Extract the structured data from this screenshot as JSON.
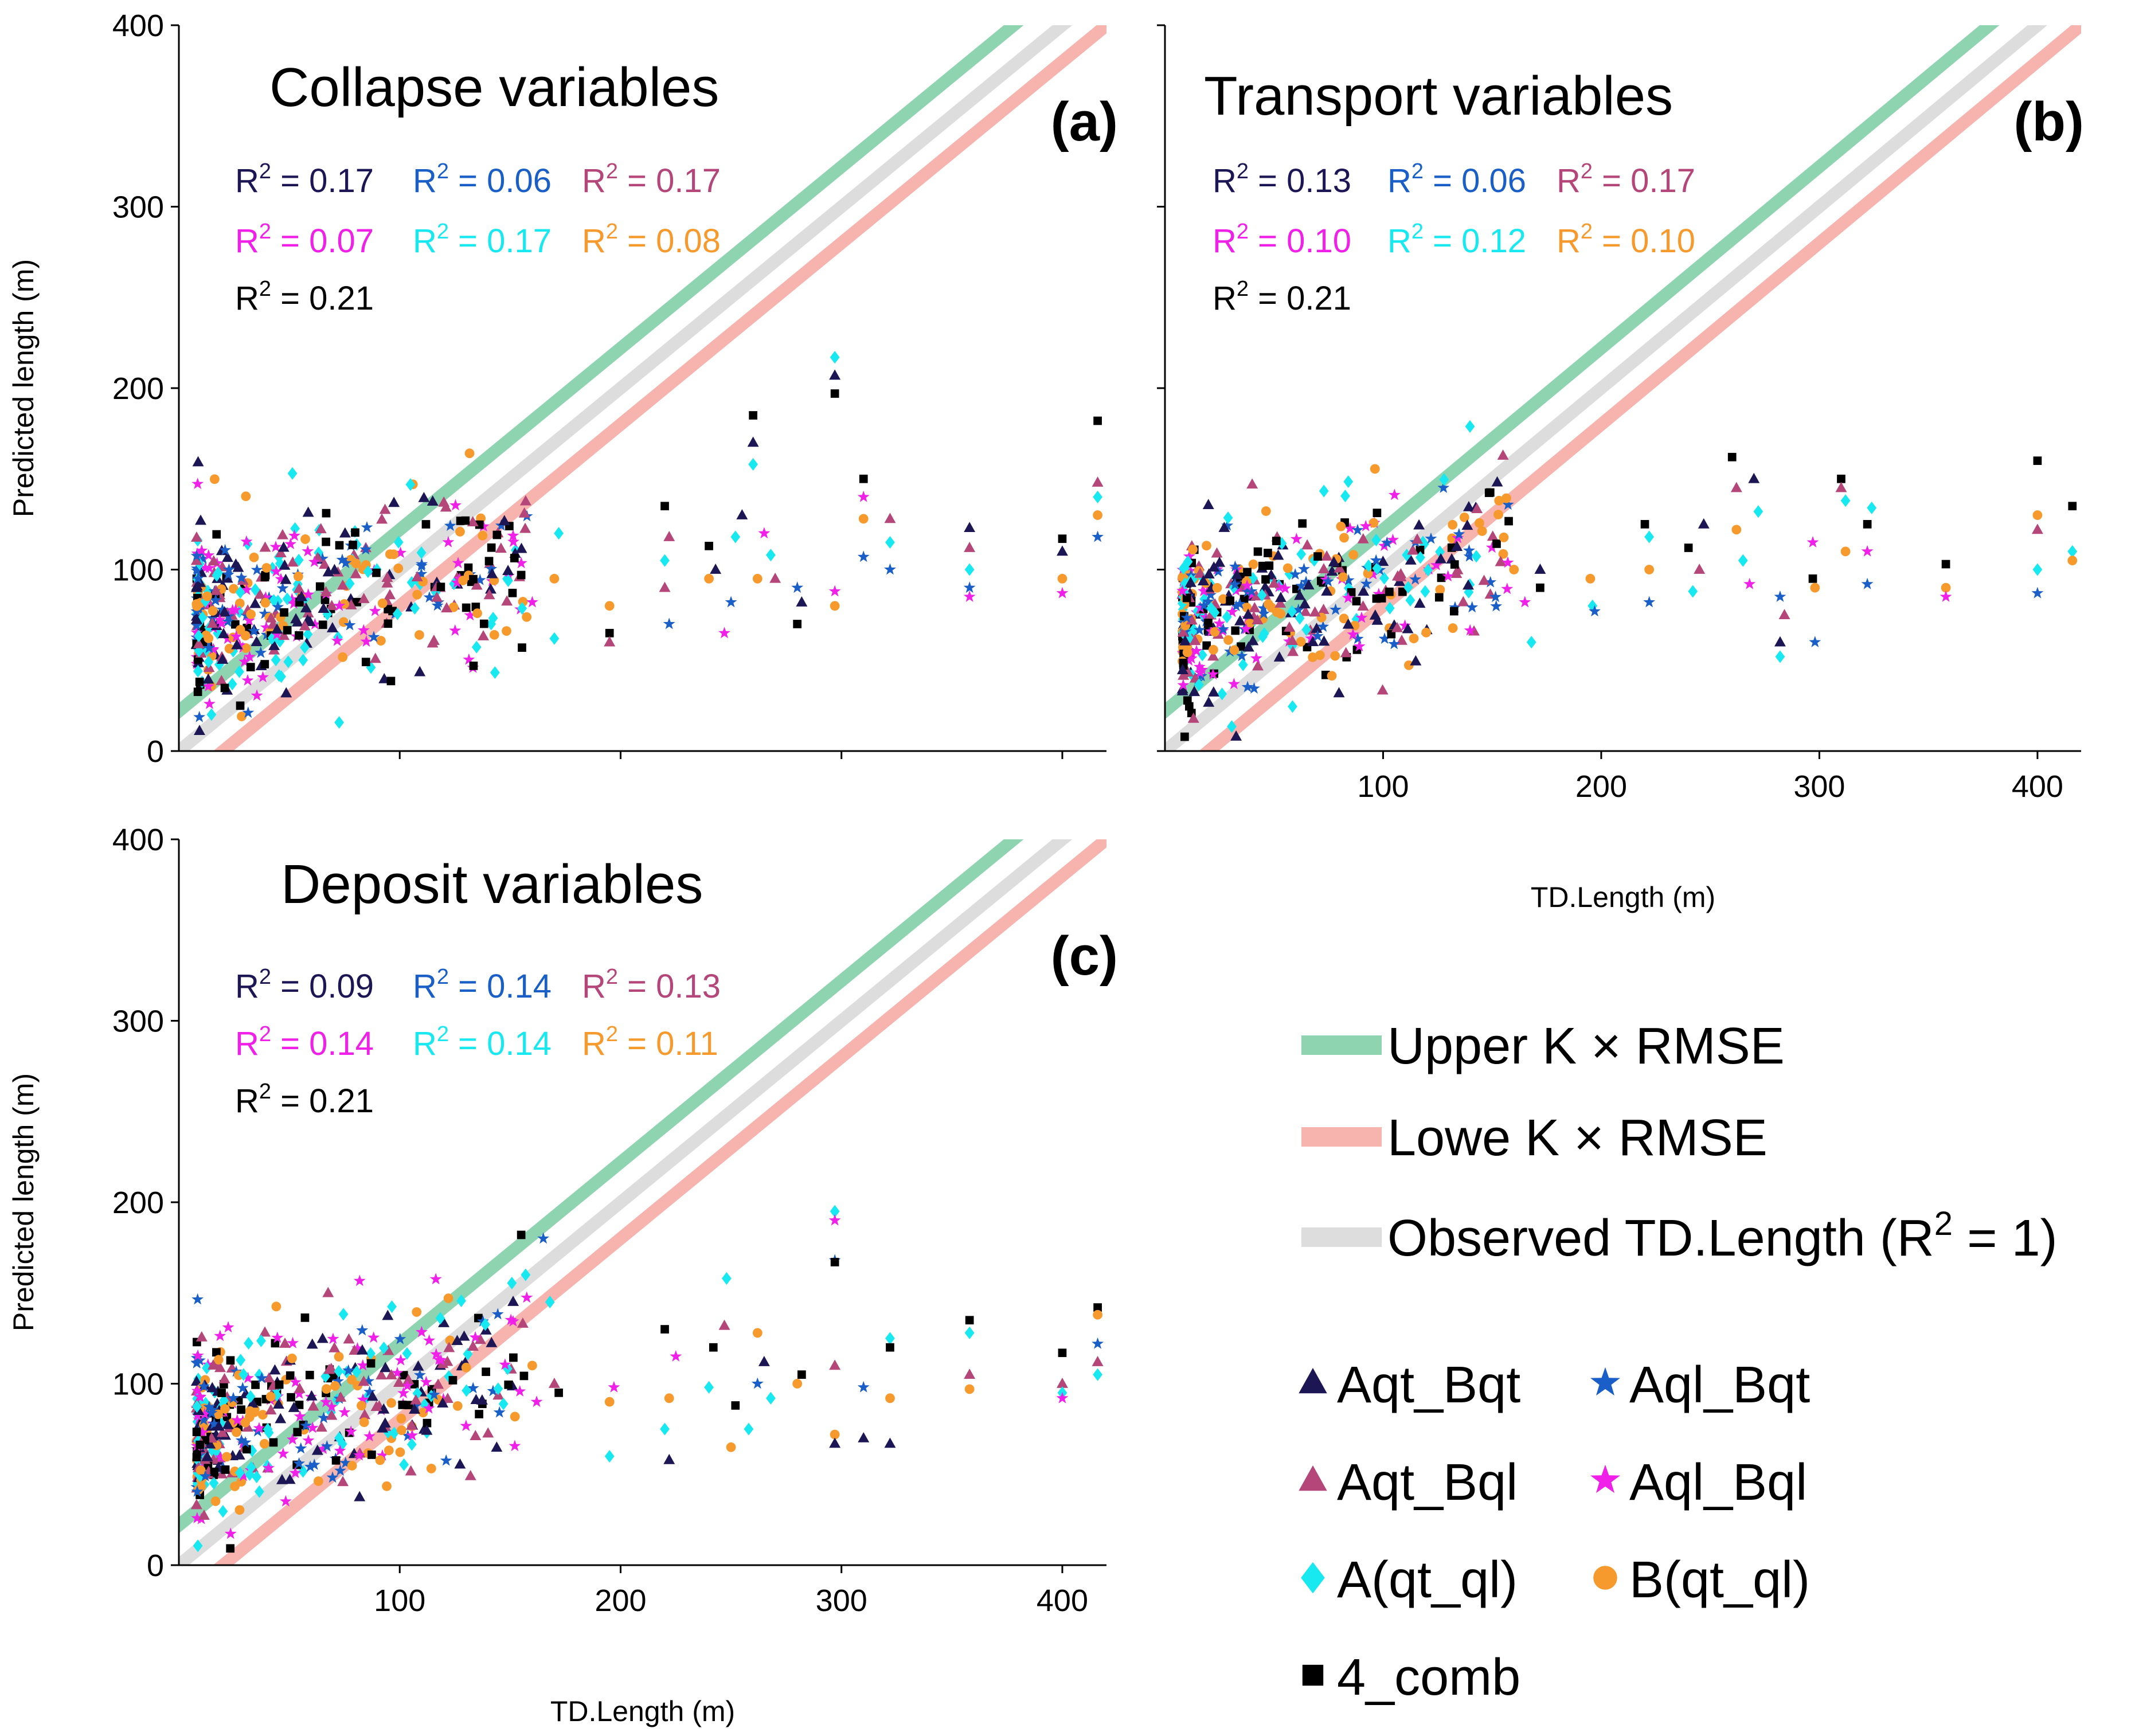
{
  "legend": {
    "lines": [
      {
        "name": "upper",
        "label": "Upper K × RMSE",
        "color": "#8fd4b0"
      },
      {
        "name": "lower",
        "label": "Lowe K × RMSE",
        "color": "#f7b3ad"
      },
      {
        "name": "observed",
        "label": "Observed TD.Length (R",
        "sup": "2",
        "suffix": " = 1)",
        "color": "#dddddd"
      }
    ],
    "markers": [
      {
        "key": "Aqt_Bqt",
        "label": "Aqt_Bqt",
        "color": "#1d1655",
        "shape": "triangle"
      },
      {
        "key": "Aql_Bqt",
        "label": "Aql_Bqt",
        "color": "#1a5fc7",
        "shape": "star"
      },
      {
        "key": "Aqt_Bql",
        "label": "Aqt_Bql",
        "color": "#b4467a",
        "shape": "triangle"
      },
      {
        "key": "Aql_Bql",
        "label": "Aql_Bql",
        "color": "#f020e8",
        "shape": "star"
      },
      {
        "key": "A_qt_ql",
        "label": "A(qt_ql)",
        "color": "#18e8f0",
        "shape": "diamond"
      },
      {
        "key": "B_qt_ql",
        "label": "B(qt_ql)",
        "color": "#f79a2e",
        "shape": "circle"
      },
      {
        "key": "comb4",
        "label": "4_comb",
        "color": "#000000",
        "shape": "square"
      }
    ]
  },
  "chart_data": [
    {
      "type": "scatter",
      "id": "a",
      "title": "Collapse variables",
      "tag": "(a)",
      "xlabel": "TD.Length (m)",
      "ylabel": "Predicted length (m)",
      "xlim": [
        0,
        420
      ],
      "ylim": [
        0,
        400
      ],
      "xticks": [
        "100",
        "200",
        "300",
        "400"
      ],
      "yticks": [
        "0",
        "100",
        "200",
        "300",
        "400"
      ],
      "show_xlabel": false,
      "show_xticklabels": false,
      "r2": [
        {
          "series": "Aqt_Bqt",
          "prefix": "R",
          "sup": "2",
          "text": " = 0.17"
        },
        {
          "series": "Aql_Bqt",
          "prefix": "R",
          "sup": "2",
          "text": " = 0.06"
        },
        {
          "series": "Aqt_Bql",
          "prefix": "R",
          "sup": "2",
          "text": " = 0.17"
        },
        {
          "series": "Aql_Bql",
          "prefix": "R",
          "sup": "2",
          "text": " = 0.07"
        },
        {
          "series": "A_qt_ql",
          "prefix": "R",
          "sup": "2",
          "text": " = 0.17"
        },
        {
          "series": "B_qt_ql",
          "prefix": "R",
          "sup": "2",
          "text": " = 0.08"
        },
        {
          "series": "comb4",
          "prefix": "R",
          "sup": "2",
          "text": " = 0.21"
        }
      ],
      "band": {
        "upper_offset": 22,
        "lower_offset": -20
      },
      "sparse_points": [
        [
          155,
          97,
          "comb4"
        ],
        [
          160,
          82,
          "Aql_Bql"
        ],
        [
          170,
          95,
          "B_qt_ql"
        ],
        [
          170,
          62,
          "A_qt_ql"
        ],
        [
          172,
          120,
          "A_qt_ql"
        ],
        [
          195,
          65,
          "comb4"
        ],
        [
          195,
          80,
          "B_qt_ql"
        ],
        [
          195,
          60,
          "Aqt_Bql"
        ],
        [
          220,
          135,
          "comb4"
        ],
        [
          220,
          105,
          "A_qt_ql"
        ],
        [
          222,
          70,
          "Aql_Bqt"
        ],
        [
          220,
          90,
          "Aqt_Bql"
        ],
        [
          222,
          118,
          "Aqt_Bql"
        ],
        [
          240,
          113,
          "comb4"
        ],
        [
          240,
          95,
          "B_qt_ql"
        ],
        [
          243,
          100,
          "Aqt_Bqt"
        ],
        [
          247,
          65,
          "Aql_Bql"
        ],
        [
          250,
          82,
          "Aql_Bqt"
        ],
        [
          252,
          118,
          "A_qt_ql"
        ],
        [
          255,
          130,
          "Aqt_Bqt"
        ],
        [
          260,
          185,
          "comb4"
        ],
        [
          260,
          170,
          "Aqt_Bqt"
        ],
        [
          260,
          158,
          "A_qt_ql"
        ],
        [
          262,
          95,
          "B_qt_ql"
        ],
        [
          265,
          120,
          "Aql_Bql"
        ],
        [
          268,
          108,
          "A_qt_ql"
        ],
        [
          270,
          95,
          "Aqt_Bql"
        ],
        [
          280,
          70,
          "comb4"
        ],
        [
          280,
          90,
          "Aql_Bqt"
        ],
        [
          282,
          82,
          "Aqt_Bqt"
        ],
        [
          297,
          217,
          "A_qt_ql"
        ],
        [
          297,
          207,
          "Aqt_Bqt"
        ],
        [
          297,
          197,
          "comb4"
        ],
        [
          297,
          88,
          "Aql_Bql"
        ],
        [
          297,
          80,
          "B_qt_ql"
        ],
        [
          310,
          150,
          "comb4"
        ],
        [
          310,
          140,
          "Aql_Bql"
        ],
        [
          310,
          128,
          "B_qt_ql"
        ],
        [
          310,
          107,
          "Aql_Bqt"
        ],
        [
          322,
          128,
          "Aqt_Bql"
        ],
        [
          322,
          115,
          "A_qt_ql"
        ],
        [
          322,
          100,
          "Aql_Bqt"
        ],
        [
          358,
          123,
          "Aqt_Bqt"
        ],
        [
          358,
          112,
          "Aqt_Bql"
        ],
        [
          358,
          100,
          "A_qt_ql"
        ],
        [
          358,
          90,
          "Aql_Bqt"
        ],
        [
          358,
          85,
          "Aql_Bql"
        ],
        [
          400,
          117,
          "comb4"
        ],
        [
          400,
          110,
          "Aqt_Bqt"
        ],
        [
          400,
          95,
          "B_qt_ql"
        ],
        [
          400,
          87,
          "Aql_Bql"
        ],
        [
          416,
          182,
          "comb4"
        ],
        [
          416,
          148,
          "Aqt_Bql"
        ],
        [
          416,
          140,
          "A_qt_ql"
        ],
        [
          416,
          130,
          "B_qt_ql"
        ],
        [
          416,
          118,
          "Aql_Bqt"
        ]
      ]
    },
    {
      "type": "scatter",
      "id": "b",
      "title": "Transport variables",
      "tag": "(b)",
      "xlabel": "TD.Length (m)",
      "ylabel": "Predicted length (m)",
      "xlim": [
        0,
        420
      ],
      "ylim": [
        0,
        400
      ],
      "xticks": [
        "100",
        "200",
        "300",
        "400"
      ],
      "yticks": [
        "0",
        "100",
        "200",
        "300",
        "400"
      ],
      "show_xlabel": true,
      "show_xticklabels": true,
      "show_ylabel": false,
      "show_yticklabels": false,
      "r2": [
        {
          "series": "Aqt_Bqt",
          "prefix": "R",
          "sup": "2",
          "text": " = 0.13"
        },
        {
          "series": "Aql_Bqt",
          "prefix": "R",
          "sup": "2",
          "text": " = 0.06"
        },
        {
          "series": "Aqt_Bql",
          "prefix": "R",
          "sup": "2",
          "text": " = 0.17"
        },
        {
          "series": "Aql_Bql",
          "prefix": "R",
          "sup": "2",
          "text": " = 0.10"
        },
        {
          "series": "A_qt_ql",
          "prefix": "R",
          "sup": "2",
          "text": " = 0.12"
        },
        {
          "series": "B_qt_ql",
          "prefix": "R",
          "sup": "2",
          "text": " = 0.10"
        },
        {
          "series": "comb4",
          "prefix": "R",
          "sup": "2",
          "text": " = 0.21"
        }
      ],
      "band": {
        "upper_offset": 22,
        "lower_offset": -20
      },
      "sparse_points": [
        [
          160,
          100,
          "B_qt_ql"
        ],
        [
          165,
          82,
          "Aql_Bql"
        ],
        [
          168,
          60,
          "A_qt_ql"
        ],
        [
          172,
          100,
          "Aqt_Bqt"
        ],
        [
          172,
          90,
          "comb4"
        ],
        [
          195,
          95,
          "B_qt_ql"
        ],
        [
          196,
          80,
          "A_qt_ql"
        ],
        [
          197,
          77,
          "Aql_Bqt"
        ],
        [
          220,
          125,
          "comb4"
        ],
        [
          222,
          118,
          "A_qt_ql"
        ],
        [
          222,
          100,
          "B_qt_ql"
        ],
        [
          222,
          82,
          "Aql_Bqt"
        ],
        [
          240,
          112,
          "comb4"
        ],
        [
          242,
          88,
          "A_qt_ql"
        ],
        [
          245,
          100,
          "Aqt_Bql"
        ],
        [
          247,
          125,
          "Aqt_Bqt"
        ],
        [
          260,
          162,
          "comb4"
        ],
        [
          262,
          145,
          "Aqt_Bql"
        ],
        [
          262,
          122,
          "B_qt_ql"
        ],
        [
          265,
          105,
          "A_qt_ql"
        ],
        [
          268,
          92,
          "Aql_Bql"
        ],
        [
          270,
          150,
          "Aqt_Bqt"
        ],
        [
          272,
          132,
          "A_qt_ql"
        ],
        [
          282,
          60,
          "Aqt_Bqt"
        ],
        [
          282,
          52,
          "A_qt_ql"
        ],
        [
          282,
          85,
          "Aql_Bqt"
        ],
        [
          284,
          75,
          "Aqt_Bql"
        ],
        [
          297,
          95,
          "comb4"
        ],
        [
          298,
          90,
          "B_qt_ql"
        ],
        [
          297,
          115,
          "Aql_Bql"
        ],
        [
          298,
          60,
          "Aql_Bqt"
        ],
        [
          310,
          150,
          "comb4"
        ],
        [
          310,
          145,
          "Aqt_Bql"
        ],
        [
          312,
          110,
          "B_qt_ql"
        ],
        [
          312,
          138,
          "A_qt_ql"
        ],
        [
          322,
          125,
          "comb4"
        ],
        [
          322,
          110,
          "Aql_Bql"
        ],
        [
          322,
          92,
          "Aql_Bqt"
        ],
        [
          324,
          134,
          "A_qt_ql"
        ],
        [
          358,
          103,
          "comb4"
        ],
        [
          358,
          90,
          "B_qt_ql"
        ],
        [
          358,
          85,
          "Aql_Bql"
        ],
        [
          400,
          160,
          "comb4"
        ],
        [
          400,
          130,
          "B_qt_ql"
        ],
        [
          400,
          122,
          "Aqt_Bql"
        ],
        [
          400,
          100,
          "A_qt_ql"
        ],
        [
          400,
          87,
          "Aql_Bqt"
        ],
        [
          416,
          135,
          "comb4"
        ],
        [
          416,
          110,
          "A_qt_ql"
        ],
        [
          416,
          105,
          "B_qt_ql"
        ]
      ]
    },
    {
      "type": "scatter",
      "id": "c",
      "title": "Deposit variables",
      "tag": "(c)",
      "xlabel": "TD.Length (m)",
      "ylabel": "Predicted length (m)",
      "xlim": [
        0,
        420
      ],
      "ylim": [
        0,
        400
      ],
      "xticks": [
        "100",
        "200",
        "300",
        "400"
      ],
      "yticks": [
        "0",
        "100",
        "200",
        "300",
        "400"
      ],
      "show_xlabel": true,
      "show_xticklabels": true,
      "r2": [
        {
          "series": "Aqt_Bqt",
          "prefix": "R",
          "sup": "2",
          "text": " = 0.09"
        },
        {
          "series": "Aql_Bqt",
          "prefix": "R",
          "sup": "2",
          "text": " = 0.14"
        },
        {
          "series": "Aqt_Bql",
          "prefix": "R",
          "sup": "2",
          "text": " = 0.13"
        },
        {
          "series": "Aql_Bql",
          "prefix": "R",
          "sup": "2",
          "text": " = 0.14"
        },
        {
          "series": "A_qt_ql",
          "prefix": "R",
          "sup": "2",
          "text": " = 0.14"
        },
        {
          "series": "B_qt_ql",
          "prefix": "R",
          "sup": "2",
          "text": " = 0.11"
        },
        {
          "series": "comb4",
          "prefix": "R",
          "sup": "2",
          "text": " = 0.21"
        }
      ],
      "band": {
        "upper_offset": 22,
        "lower_offset": -20
      },
      "sparse_points": [
        [
          155,
          182,
          "comb4"
        ],
        [
          157,
          160,
          "A_qt_ql"
        ],
        [
          160,
          110,
          "B_qt_ql"
        ],
        [
          162,
          90,
          "Aql_Bql"
        ],
        [
          165,
          180,
          "Aql_Bqt"
        ],
        [
          168,
          145,
          "A_qt_ql"
        ],
        [
          170,
          100,
          "Aqt_Bql"
        ],
        [
          172,
          95,
          "comb4"
        ],
        [
          195,
          60,
          "A_qt_ql"
        ],
        [
          195,
          90,
          "B_qt_ql"
        ],
        [
          197,
          98,
          "Aql_Bql"
        ],
        [
          220,
          130,
          "comb4"
        ],
        [
          220,
          75,
          "A_qt_ql"
        ],
        [
          222,
          92,
          "B_qt_ql"
        ],
        [
          222,
          58,
          "Aqt_Bqt"
        ],
        [
          225,
          115,
          "Aql_Bql"
        ],
        [
          240,
          98,
          "A_qt_ql"
        ],
        [
          242,
          120,
          "comb4"
        ],
        [
          247,
          132,
          "Aqt_Bql"
        ],
        [
          248,
          158,
          "A_qt_ql"
        ],
        [
          250,
          65,
          "B_qt_ql"
        ],
        [
          252,
          88,
          "comb4"
        ],
        [
          258,
          75,
          "A_qt_ql"
        ],
        [
          262,
          128,
          "B_qt_ql"
        ],
        [
          262,
          100,
          "Aql_Bqt"
        ],
        [
          265,
          112,
          "Aqt_Bqt"
        ],
        [
          268,
          92,
          "A_qt_ql"
        ],
        [
          280,
          100,
          "B_qt_ql"
        ],
        [
          282,
          105,
          "comb4"
        ],
        [
          297,
          195,
          "A_qt_ql"
        ],
        [
          297,
          190,
          "Aql_Bql"
        ],
        [
          297,
          168,
          "Aql_Bqt"
        ],
        [
          297,
          167,
          "comb4"
        ],
        [
          297,
          110,
          "Aqt_Bql"
        ],
        [
          297,
          72,
          "B_qt_ql"
        ],
        [
          297,
          67,
          "Aqt_Bqt"
        ],
        [
          310,
          98,
          "Aql_Bqt"
        ],
        [
          310,
          70,
          "Aqt_Bqt"
        ],
        [
          322,
          125,
          "A_qt_ql"
        ],
        [
          322,
          120,
          "comb4"
        ],
        [
          322,
          92,
          "B_qt_ql"
        ],
        [
          322,
          67,
          "Aqt_Bqt"
        ],
        [
          358,
          135,
          "comb4"
        ],
        [
          358,
          128,
          "A_qt_ql"
        ],
        [
          358,
          105,
          "Aqt_Bql"
        ],
        [
          358,
          97,
          "B_qt_ql"
        ],
        [
          400,
          117,
          "comb4"
        ],
        [
          400,
          100,
          "Aqt_Bql"
        ],
        [
          400,
          95,
          "A_qt_ql"
        ],
        [
          400,
          92,
          "Aql_Bql"
        ],
        [
          416,
          142,
          "comb4"
        ],
        [
          416,
          138,
          "B_qt_ql"
        ],
        [
          416,
          122,
          "Aql_Bqt"
        ],
        [
          416,
          112,
          "Aqt_Bql"
        ],
        [
          416,
          105,
          "A_qt_ql"
        ]
      ]
    }
  ]
}
